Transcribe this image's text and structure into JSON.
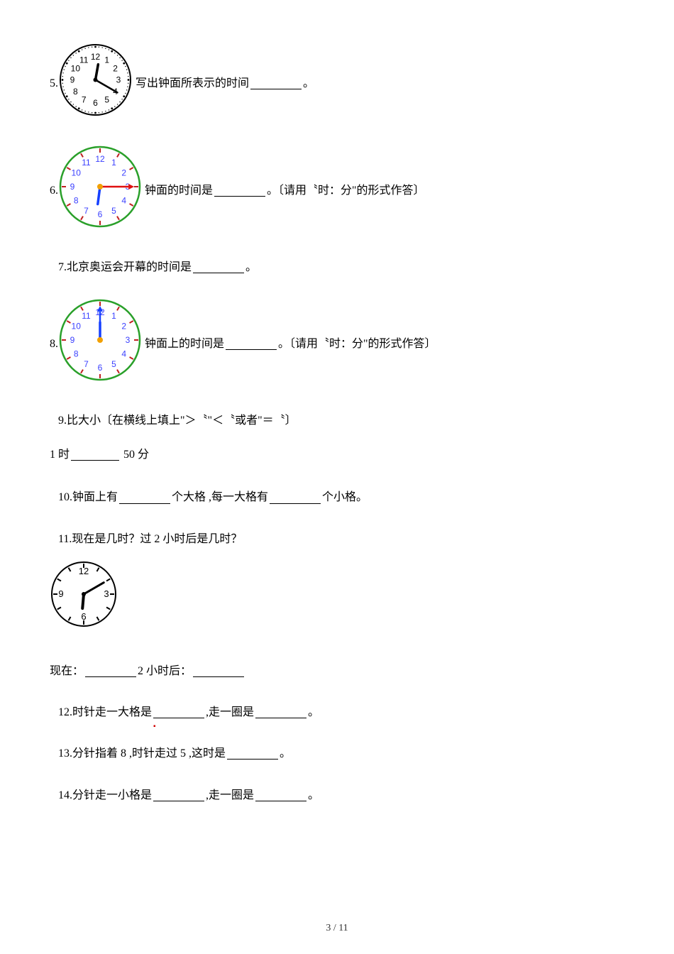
{
  "q5": {
    "num": "5.",
    "after_img": "写出钟面所表示的时间",
    "tail": "。",
    "clock": {
      "style": "bw",
      "hour": 12,
      "minute": 20,
      "size": 105,
      "dot_seconds": true,
      "dot_color": "#000000",
      "face_border": "#000000",
      "num_color": "#000000",
      "hand_color": "#000000"
    }
  },
  "q6": {
    "num": "6.",
    "after_img_a": "钟面的时间是",
    "after_img_b": "。〔请用〝时：分\"的形式作答〕",
    "clock": {
      "style": "color",
      "hour": 6,
      "minute": 15,
      "size": 118,
      "face_border": "#2aa02a",
      "tick_color": "#c02020",
      "num_color": "#3a3fff",
      "hour_hand": "#1640ff",
      "minute_hand": "#e01010",
      "center_dot": "#f2a000"
    }
  },
  "q7": {
    "num": "7.",
    "text_a": "北京奥运会开幕的时间是",
    "tail": "。"
  },
  "q8": {
    "num": "8.",
    "after_img_a": "钟面上的时间是",
    "after_img_b": "。〔请用〝时：分\"的形式作答〕",
    "clock": {
      "style": "color",
      "hour": 12,
      "minute": 0,
      "size": 118,
      "face_border": "#2aa02a",
      "tick_color": "#c02020",
      "num_color": "#3a3fff",
      "hour_hand": "#1640ff",
      "minute_hand": "#1640ff",
      "center_dot": "#f2a000",
      "minute_arrow": true
    }
  },
  "q9": {
    "num": "9.",
    "text": "比大小〔在横线上填上\"＞〝\"＜〝或者\"＝〝〕"
  },
  "q9b": {
    "left": "1 时",
    "right": " 50 分"
  },
  "q10": {
    "num": "10.",
    "a": "钟面上有",
    "b": "个大格 ,每一大格有",
    "c": "个小格。"
  },
  "q11": {
    "num": "11.",
    "text": "现在是几时？过 2 小时后是几时？",
    "clock": {
      "style": "bw-simple",
      "hour": 6,
      "minute": 10,
      "size": 96,
      "face_border": "#000000",
      "num_color": "#000000",
      "hand_color": "#000000"
    }
  },
  "q11b": {
    "a": "现在：",
    "b": "2 小时后：",
    "tail": ""
  },
  "q12": {
    "num": "12.",
    "a": "时针走一大格是",
    "b": " ,走一圈是",
    "c": "。"
  },
  "q13": {
    "num": "13.",
    "a": "分针指着 8 ,时针走过 5 ,这时是",
    "b": "。"
  },
  "q14": {
    "num": "14.",
    "a": "分针走一小格是",
    "b": ",走一圈是",
    "c": "。"
  },
  "footer": "3 / 11"
}
